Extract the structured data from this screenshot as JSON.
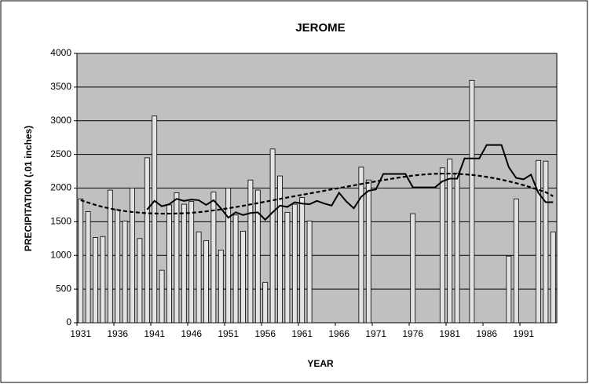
{
  "chart_data": {
    "type": "bar",
    "title": "JEROME",
    "x_label": "YEAR",
    "y_label": "PRECIPITATION (.01 inches)",
    "categories": [
      "1931",
      null,
      null,
      null,
      null,
      "1936",
      null,
      null,
      null,
      null,
      "1941",
      null,
      null,
      null,
      null,
      "1946",
      null,
      null,
      null,
      null,
      "1951",
      null,
      null,
      null,
      null,
      "1956",
      null,
      null,
      null,
      null,
      "1961",
      null,
      null,
      null,
      null,
      "1966",
      null,
      null,
      null,
      null,
      "1971",
      null,
      null,
      null,
      null,
      "1976",
      null,
      null,
      null,
      null,
      "1981",
      null,
      null,
      null,
      null,
      "1986",
      null,
      null,
      null,
      null,
      "1991",
      null,
      null,
      null,
      null
    ],
    "series": [
      {
        "type": "bar",
        "color": "#e4e4e4",
        "values": [
          1840,
          1650,
          1265,
          1280,
          1970,
          1680,
          1510,
          2000,
          1250,
          2450,
          3070,
          780,
          1750,
          1930,
          1760,
          1800,
          1350,
          1220,
          1940,
          1080,
          2000,
          1600,
          1360,
          2120,
          1970,
          600,
          2580,
          2180,
          1640,
          1760,
          1860,
          1510,
          null,
          null,
          null,
          null,
          null,
          null,
          2310,
          2120,
          null,
          null,
          null,
          null,
          null,
          1620,
          null,
          null,
          null,
          2300,
          2430,
          2220,
          null,
          3600,
          null,
          null,
          null,
          null,
          990,
          1840,
          null,
          null,
          2411,
          2400,
          1350
        ]
      },
      {
        "type": "line",
        "color": "#000000",
        "dashed": false,
        "values": [
          null,
          null,
          null,
          null,
          null,
          null,
          null,
          null,
          null,
          1680,
          1810,
          1730,
          1760,
          1840,
          1810,
          1830,
          1820,
          1750,
          1820,
          1700,
          1560,
          1640,
          1600,
          1630,
          1640,
          1530,
          1640,
          1740,
          1720,
          1790,
          1770,
          1760,
          1810,
          1770,
          1740,
          1930,
          1800,
          1700,
          1870,
          1960,
          1980,
          2210,
          2210,
          2210,
          2210,
          2010,
          2010,
          2010,
          2010,
          2100,
          2140,
          2140,
          2440,
          2440,
          2440,
          2640,
          2640,
          2640,
          2310,
          2150,
          2130,
          2200,
          1930,
          1790,
          1790
        ]
      },
      {
        "type": "line",
        "color": "#000000",
        "dashed": true,
        "values": [
          1820,
          1785,
          1750,
          1720,
          1695,
          1675,
          1658,
          1645,
          1635,
          1627,
          1622,
          1620,
          1620,
          1622,
          1626,
          1632,
          1642,
          1654,
          1668,
          1684,
          1700,
          1718,
          1737,
          1757,
          1777,
          1797,
          1818,
          1839,
          1860,
          1880,
          1900,
          1920,
          1940,
          1960,
          1980,
          2000,
          2020,
          2040,
          2060,
          2080,
          2100,
          2118,
          2136,
          2154,
          2170,
          2185,
          2197,
          2206,
          2212,
          2215,
          2215,
          2212,
          2205,
          2195,
          2182,
          2166,
          2147,
          2125,
          2100,
          2073,
          2043,
          2010,
          1975,
          1938,
          1880
        ]
      }
    ],
    "ylim": [
      0,
      4000
    ],
    "yticks": [
      0,
      500,
      1000,
      1500,
      2000,
      2500,
      3000,
      3500,
      4000
    ],
    "grid": true,
    "plot_background": "#c0c0c0"
  }
}
